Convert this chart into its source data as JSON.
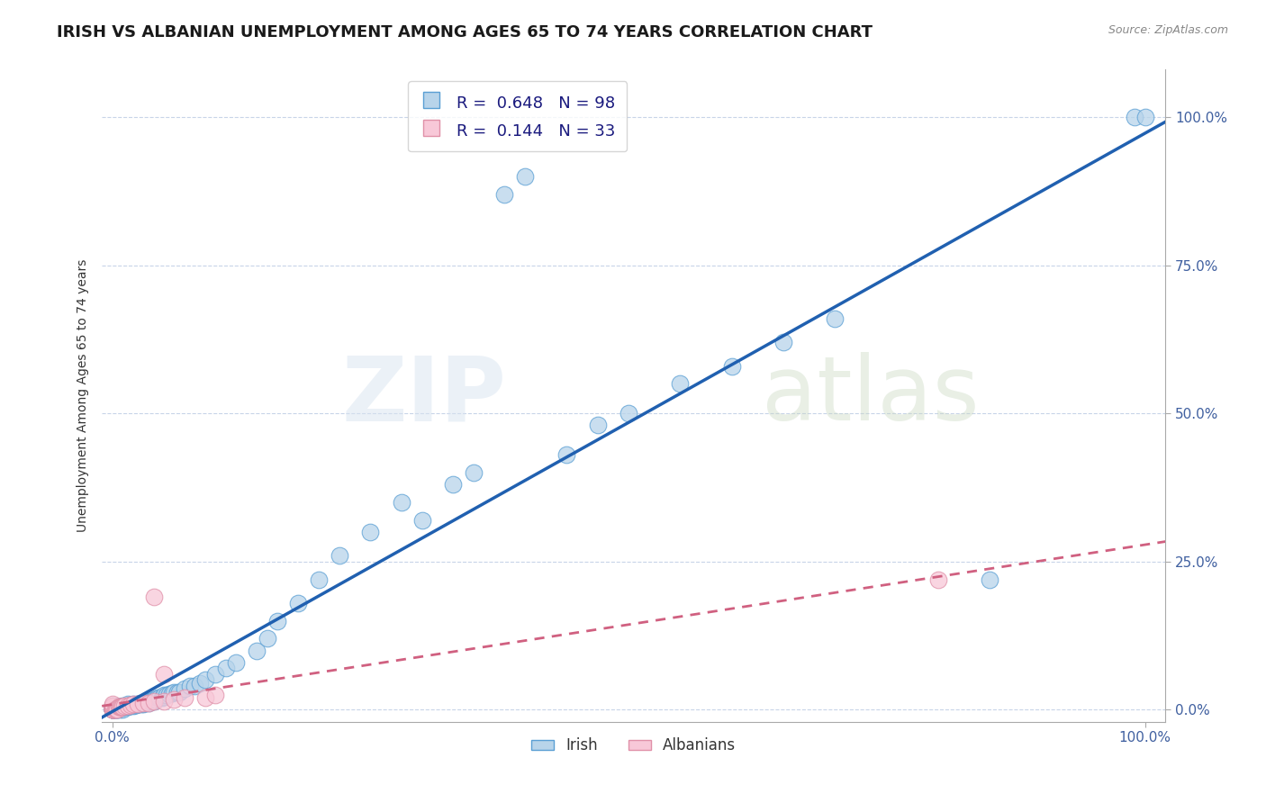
{
  "title": "IRISH VS ALBANIAN UNEMPLOYMENT AMONG AGES 65 TO 74 YEARS CORRELATION CHART",
  "source": "Source: ZipAtlas.com",
  "ylabel": "Unemployment Among Ages 65 to 74 years",
  "xlim": [
    -0.01,
    1.02
  ],
  "ylim": [
    -0.02,
    1.08
  ],
  "xtick_labels": [
    "0.0%",
    "100.0%"
  ],
  "xtick_positions": [
    0.0,
    1.0
  ],
  "ytick_labels": [
    "0.0%",
    "25.0%",
    "50.0%",
    "75.0%",
    "100.0%"
  ],
  "ytick_positions": [
    0.0,
    0.25,
    0.5,
    0.75,
    1.0
  ],
  "irish_R": 0.648,
  "irish_N": 98,
  "albanian_R": 0.144,
  "albanian_N": 33,
  "irish_color": "#b8d4ea",
  "irish_edge_color": "#5a9fd4",
  "irish_line_color": "#2060b0",
  "albanian_color": "#f8c8d8",
  "albanian_edge_color": "#e090a8",
  "albanian_line_color": "#d06080",
  "background_color": "#ffffff",
  "grid_color": "#c8d4e8",
  "watermark": "ZIPatlas",
  "title_fontsize": 13,
  "axis_label_fontsize": 10,
  "tick_fontsize": 11,
  "legend_fontsize": 13,
  "irish_x": [
    0.0,
    0.0,
    0.0,
    0.0,
    0.0,
    0.0,
    0.0,
    0.0,
    0.0,
    0.0,
    0.003,
    0.004,
    0.005,
    0.005,
    0.005,
    0.005,
    0.006,
    0.007,
    0.007,
    0.008,
    0.009,
    0.01,
    0.01,
    0.01,
    0.01,
    0.01,
    0.011,
    0.012,
    0.013,
    0.015,
    0.015,
    0.015,
    0.016,
    0.017,
    0.018,
    0.019,
    0.02,
    0.02,
    0.021,
    0.022,
    0.023,
    0.025,
    0.025,
    0.026,
    0.027,
    0.028,
    0.03,
    0.03,
    0.032,
    0.033,
    0.035,
    0.036,
    0.038,
    0.04,
    0.04,
    0.042,
    0.044,
    0.046,
    0.048,
    0.05,
    0.05,
    0.053,
    0.055,
    0.058,
    0.06,
    0.063,
    0.065,
    0.07,
    0.075,
    0.08,
    0.085,
    0.09,
    0.1,
    0.11,
    0.12,
    0.14,
    0.15,
    0.16,
    0.18,
    0.2,
    0.22,
    0.25,
    0.28,
    0.3,
    0.33,
    0.35,
    0.38,
    0.4,
    0.44,
    0.47,
    0.5,
    0.55,
    0.6,
    0.65,
    0.7,
    0.85,
    0.99,
    1.0
  ],
  "irish_y": [
    0.0,
    0.0,
    0.0,
    0.0,
    0.0,
    0.0,
    0.005,
    0.005,
    0.005,
    0.007,
    0.0,
    0.0,
    0.0,
    0.0,
    0.005,
    0.005,
    0.005,
    0.005,
    0.0,
    0.005,
    0.005,
    0.0,
    0.005,
    0.005,
    0.005,
    0.007,
    0.005,
    0.005,
    0.007,
    0.005,
    0.007,
    0.01,
    0.007,
    0.007,
    0.008,
    0.008,
    0.007,
    0.01,
    0.008,
    0.008,
    0.008,
    0.01,
    0.01,
    0.01,
    0.012,
    0.01,
    0.01,
    0.012,
    0.012,
    0.015,
    0.012,
    0.015,
    0.015,
    0.015,
    0.018,
    0.018,
    0.02,
    0.02,
    0.02,
    0.022,
    0.025,
    0.025,
    0.027,
    0.028,
    0.03,
    0.03,
    0.03,
    0.035,
    0.04,
    0.04,
    0.045,
    0.05,
    0.06,
    0.07,
    0.08,
    0.1,
    0.12,
    0.15,
    0.18,
    0.22,
    0.26,
    0.3,
    0.35,
    0.32,
    0.38,
    0.4,
    0.87,
    0.9,
    0.43,
    0.48,
    0.5,
    0.55,
    0.58,
    0.62,
    0.66,
    0.22,
    1.0,
    1.0
  ],
  "albanian_x": [
    0.0,
    0.0,
    0.0,
    0.0,
    0.0,
    0.0,
    0.0,
    0.0,
    0.0,
    0.003,
    0.004,
    0.005,
    0.006,
    0.007,
    0.008,
    0.009,
    0.01,
    0.012,
    0.015,
    0.018,
    0.02,
    0.025,
    0.03,
    0.035,
    0.04,
    0.05,
    0.06,
    0.07,
    0.09,
    0.1,
    0.04,
    0.05,
    0.8
  ],
  "albanian_y": [
    0.0,
    0.0,
    0.0,
    0.0,
    0.0,
    0.005,
    0.005,
    0.007,
    0.01,
    0.0,
    0.0,
    0.0,
    0.005,
    0.005,
    0.005,
    0.005,
    0.005,
    0.007,
    0.007,
    0.008,
    0.01,
    0.01,
    0.012,
    0.012,
    0.015,
    0.015,
    0.018,
    0.02,
    0.02,
    0.025,
    0.19,
    0.06,
    0.22
  ]
}
